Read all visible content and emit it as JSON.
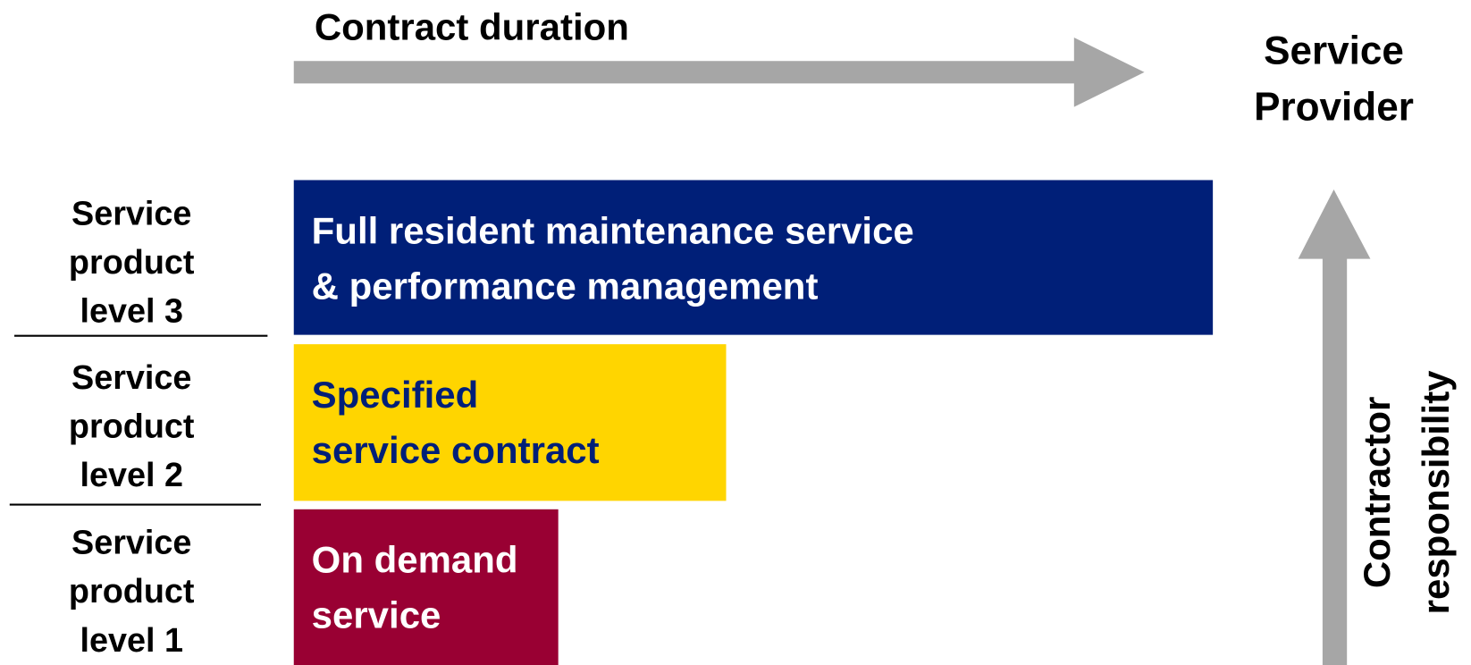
{
  "top_arrow": {
    "label": "Contract duration"
  },
  "corner_label": [
    "Service",
    "Provider"
  ],
  "levels": [
    {
      "label": [
        "Service",
        "product",
        "level 3"
      ],
      "box": [
        "Full resident maintenance service",
        "& performance management"
      ],
      "color": "#001f78",
      "text_color": "#ffffff"
    },
    {
      "label": [
        "Service",
        "product",
        "level 2"
      ],
      "box": [
        "Specified",
        "service contract"
      ],
      "color": "#ffd500",
      "text_color": "#001f78"
    },
    {
      "label": [
        "Service",
        "product",
        "level 1"
      ],
      "box": [
        "On demand",
        "service"
      ],
      "color": "#990033",
      "text_color": "#ffffff"
    }
  ],
  "side_arrow": {
    "label": [
      "Contractor",
      "responsibility"
    ]
  }
}
